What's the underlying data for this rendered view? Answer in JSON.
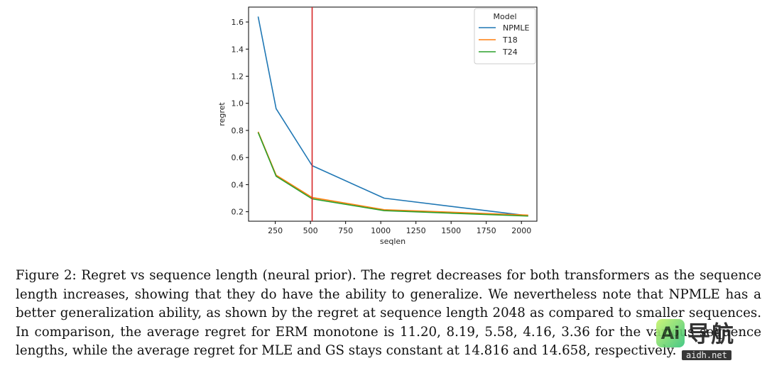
{
  "chart_data": {
    "type": "line",
    "xlabel": "seqlen",
    "ylabel": "regret",
    "x": [
      128,
      256,
      512,
      1024,
      2048
    ],
    "xlim": [
      60,
      2110
    ],
    "ylim": [
      0.13,
      1.71
    ],
    "xticks": [
      250,
      500,
      750,
      1000,
      1250,
      1500,
      1750,
      2000
    ],
    "yticks": [
      0.2,
      0.4,
      0.6,
      0.8,
      1.0,
      1.2,
      1.4,
      1.6
    ],
    "xtick_labels": [
      "250",
      "500",
      "750",
      "1000",
      "1250",
      "1500",
      "1750",
      "2000"
    ],
    "ytick_labels": [
      "0.2",
      "0.4",
      "0.6",
      "0.8",
      "1.0",
      "1.2",
      "1.4",
      "1.6"
    ],
    "vline": {
      "x": 512,
      "color": "#d62728"
    },
    "legend": {
      "title": "Model",
      "placement": "top-right"
    },
    "grid": false,
    "series": [
      {
        "name": "NPMLE",
        "color": "#1f77b4",
        "values": [
          1.64,
          0.96,
          0.54,
          0.3,
          0.17
        ]
      },
      {
        "name": "T18",
        "color": "#ff7f0e",
        "values": [
          0.79,
          0.47,
          0.305,
          0.215,
          0.175
        ]
      },
      {
        "name": "T24",
        "color": "#2ca02c",
        "values": [
          0.785,
          0.462,
          0.295,
          0.208,
          0.168
        ]
      }
    ]
  },
  "caption": {
    "text": "Figure 2: Regret vs sequence length (neural prior). The regret decreases for both transformers as the sequence length increases, showing that they do have the ability to generalize. We nevertheless note that NPMLE has a better generalization ability, as shown by the regret at sequence length 2048 as compared to smaller sequences. In comparison, the average regret for ERM monotone is 11.20, 8.19, 5.58, 4.16, 3.36 for the various sequence lengths, while the average regret for MLE and GS stays constant at 14.816 and 14.658, respectively."
  },
  "watermark": {
    "logo_text": "Ai",
    "text": "导航",
    "url": "aidh.net"
  }
}
